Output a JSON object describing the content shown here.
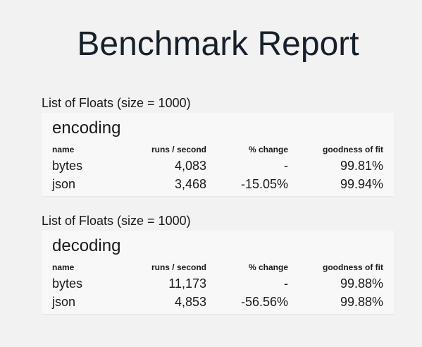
{
  "page": {
    "title": "Benchmark Report"
  },
  "columns": {
    "name": "name",
    "runs": "runs / second",
    "change": "% change",
    "fit": "goodness of fit"
  },
  "sections": [
    {
      "label": "List of Floats (size = 1000)",
      "title": "encoding",
      "rows": [
        {
          "name": "bytes",
          "runs": "4,083",
          "change": "-",
          "fit": "99.81%"
        },
        {
          "name": "json",
          "runs": "3,468",
          "change": "-15.05%",
          "fit": "99.94%"
        }
      ]
    },
    {
      "label": "List of Floats (size = 1000)",
      "title": "decoding",
      "rows": [
        {
          "name": "bytes",
          "runs": "11,173",
          "change": "-",
          "fit": "99.88%"
        },
        {
          "name": "json",
          "runs": "4,853",
          "change": "-56.56%",
          "fit": "99.88%"
        }
      ]
    }
  ]
}
